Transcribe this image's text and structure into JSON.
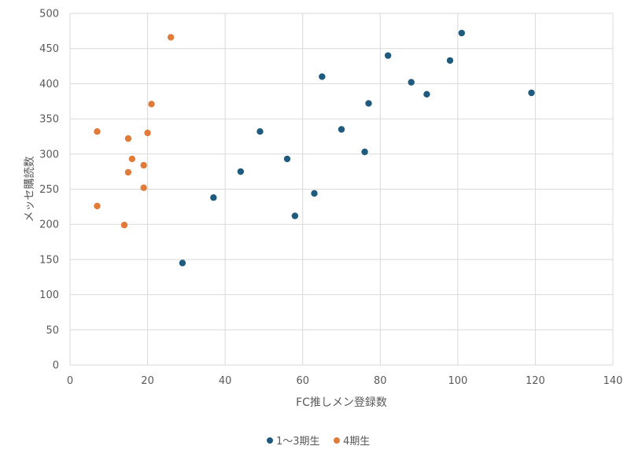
{
  "chart_data": {
    "type": "scatter",
    "title": "",
    "xlabel": "FC推しメン登録数",
    "ylabel": "メッセ購読数",
    "xlim": [
      0,
      140
    ],
    "ylim": [
      0,
      500
    ],
    "xticks": [
      0,
      20,
      40,
      60,
      80,
      100,
      120,
      140
    ],
    "yticks": [
      0,
      50,
      100,
      150,
      200,
      250,
      300,
      350,
      400,
      450,
      500
    ],
    "grid": true,
    "legend_position": "bottom",
    "series": [
      {
        "name": "1〜3期生",
        "color": "#1f5b7e",
        "points": [
          {
            "x": 29,
            "y": 145
          },
          {
            "x": 37,
            "y": 238
          },
          {
            "x": 44,
            "y": 275
          },
          {
            "x": 49,
            "y": 332
          },
          {
            "x": 56,
            "y": 293
          },
          {
            "x": 58,
            "y": 212
          },
          {
            "x": 63,
            "y": 244
          },
          {
            "x": 65,
            "y": 410
          },
          {
            "x": 70,
            "y": 335
          },
          {
            "x": 76,
            "y": 303
          },
          {
            "x": 77,
            "y": 372
          },
          {
            "x": 82,
            "y": 440
          },
          {
            "x": 88,
            "y": 402
          },
          {
            "x": 92,
            "y": 385
          },
          {
            "x": 98,
            "y": 433
          },
          {
            "x": 101,
            "y": 472
          },
          {
            "x": 119,
            "y": 387
          }
        ]
      },
      {
        "name": "4期生",
        "color": "#e07b3a",
        "points": [
          {
            "x": 7,
            "y": 332
          },
          {
            "x": 7,
            "y": 226
          },
          {
            "x": 14,
            "y": 199
          },
          {
            "x": 15,
            "y": 322
          },
          {
            "x": 15,
            "y": 274
          },
          {
            "x": 16,
            "y": 293
          },
          {
            "x": 19,
            "y": 284
          },
          {
            "x": 19,
            "y": 252
          },
          {
            "x": 20,
            "y": 330
          },
          {
            "x": 21,
            "y": 371
          },
          {
            "x": 26,
            "y": 466
          }
        ]
      }
    ]
  }
}
